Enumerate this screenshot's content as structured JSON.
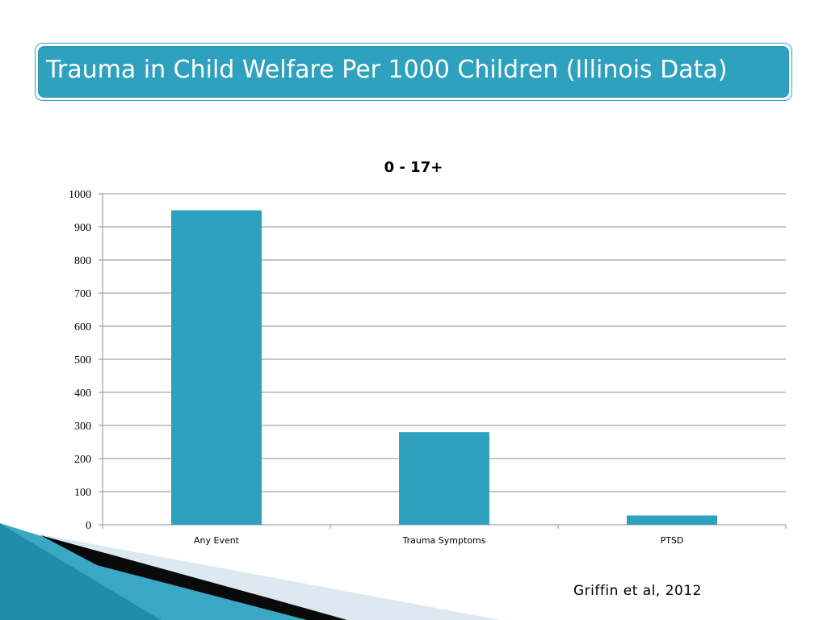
{
  "slide": {
    "title": "Trauma in Child Welfare Per 1000 Children (Illinois Data)",
    "citation": "Griffin et al, 2012",
    "accent_color": "#2ea1be"
  },
  "chart_data": {
    "type": "bar",
    "title": "0 - 17+",
    "categories": [
      "Any Event",
      "Trauma Symptoms",
      "PTSD"
    ],
    "values": [
      950,
      280,
      28
    ],
    "ylim": [
      0,
      1000
    ],
    "yticks": [
      0,
      100,
      200,
      300,
      400,
      500,
      600,
      700,
      800,
      900,
      1000
    ],
    "xlabel": "",
    "ylabel": "",
    "grid": true,
    "legend": "none",
    "bar_color": "#2ea1be"
  }
}
